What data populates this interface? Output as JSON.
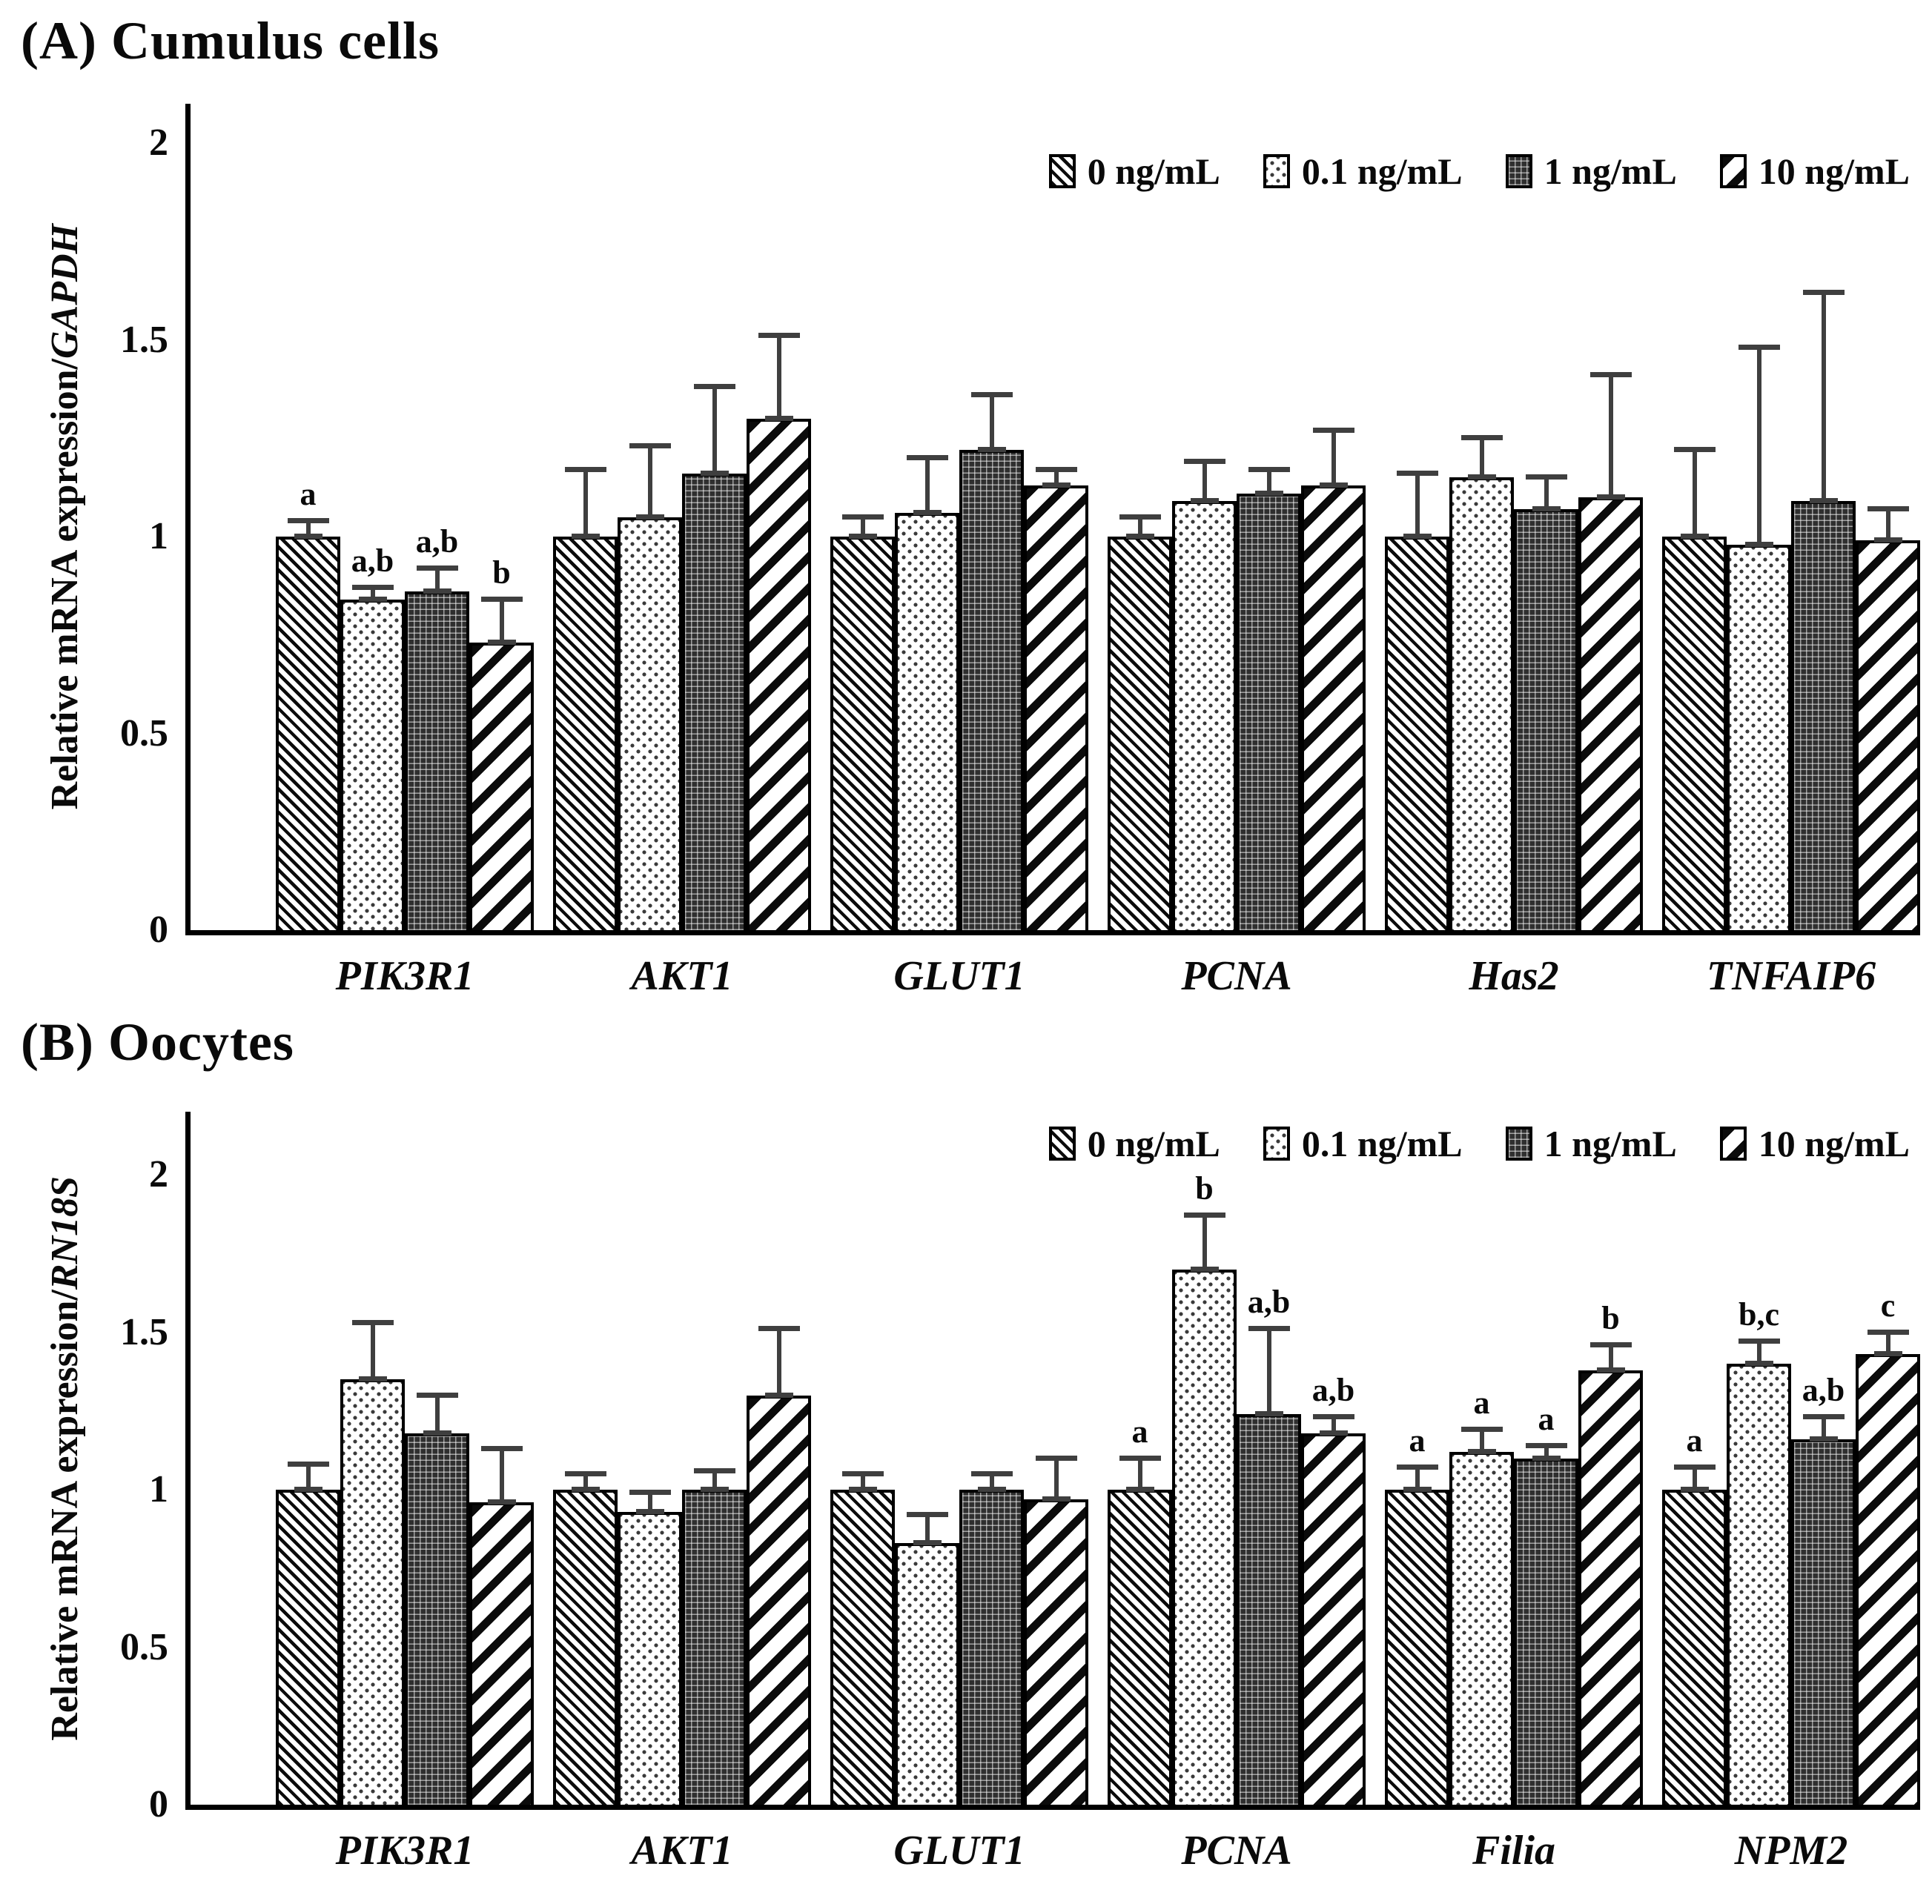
{
  "chart_data": [
    {
      "type": "bar",
      "panel": "A",
      "title": "(A) Cumulus cells",
      "ylabel_prefix": "Relative mRNA expression/",
      "ylabel_gene": "GAPDH",
      "ylim": [
        0,
        2.1
      ],
      "yticks": [
        "0",
        "0.5",
        "1",
        "1.5",
        "2"
      ],
      "ytick_values": [
        0,
        0.5,
        1,
        1.5,
        2
      ],
      "grid": false,
      "legend_position": "top-right",
      "categories": [
        "PIK3R1",
        "AKT1",
        "GLUT1",
        "PCNA",
        "Has2",
        "TNFAIP6"
      ],
      "series": [
        {
          "name": "0 ng/mL",
          "hatch": "thin-backslash",
          "values": [
            1.0,
            1.0,
            1.0,
            1.0,
            1.0,
            1.0
          ],
          "errors": [
            0.04,
            0.17,
            0.05,
            0.05,
            0.16,
            0.22
          ],
          "sig": [
            "a",
            "",
            "",
            "",
            "",
            ""
          ]
        },
        {
          "name": "0.1 ng/mL",
          "hatch": "dots",
          "values": [
            0.84,
            1.05,
            1.06,
            1.09,
            1.15,
            0.98
          ],
          "errors": [
            0.03,
            0.18,
            0.14,
            0.1,
            0.1,
            0.5
          ],
          "sig": [
            "a,b",
            "",
            "",
            "",
            "",
            ""
          ]
        },
        {
          "name": "1 ng/mL",
          "hatch": "dark-grid",
          "values": [
            0.86,
            1.16,
            1.22,
            1.11,
            1.07,
            1.09
          ],
          "errors": [
            0.06,
            0.22,
            0.14,
            0.06,
            0.08,
            0.53
          ],
          "sig": [
            "a,b",
            "",
            "",
            "",
            "",
            ""
          ]
        },
        {
          "name": "10 ng/mL",
          "hatch": "wide-slash",
          "values": [
            0.73,
            1.3,
            1.13,
            1.13,
            1.1,
            0.99
          ],
          "errors": [
            0.11,
            0.21,
            0.04,
            0.14,
            0.31,
            0.08
          ],
          "sig": [
            "b",
            "",
            "",
            "",
            "",
            ""
          ]
        }
      ]
    },
    {
      "type": "bar",
      "panel": "B",
      "title": "(B) Oocytes",
      "ylabel_prefix": "Relative mRNA expression/",
      "ylabel_gene": "RN18S",
      "ylim": [
        0,
        2.2
      ],
      "yticks": [
        "0",
        "0.5",
        "1",
        "1.5",
        "2"
      ],
      "ytick_values": [
        0,
        0.5,
        1,
        1.5,
        2
      ],
      "grid": false,
      "legend_position": "top-right",
      "categories": [
        "PIK3R1",
        "AKT1",
        "GLUT1",
        "PCNA",
        "Filia",
        "NPM2"
      ],
      "series": [
        {
          "name": "0 ng/mL",
          "hatch": "thin-backslash",
          "values": [
            1.0,
            1.0,
            1.0,
            1.0,
            1.0,
            1.0
          ],
          "errors": [
            0.08,
            0.05,
            0.05,
            0.1,
            0.07,
            0.07
          ],
          "sig": [
            "",
            "",
            "",
            "a",
            "a",
            "a"
          ]
        },
        {
          "name": "0.1 ng/mL",
          "hatch": "dots",
          "values": [
            1.35,
            0.93,
            0.83,
            1.7,
            1.12,
            1.4
          ],
          "errors": [
            0.18,
            0.06,
            0.09,
            0.17,
            0.07,
            0.07
          ],
          "sig": [
            "",
            "",
            "",
            "b",
            "a",
            "b,c"
          ]
        },
        {
          "name": "1 ng/mL",
          "hatch": "dark-grid",
          "values": [
            1.18,
            1.0,
            1.0,
            1.24,
            1.1,
            1.16
          ],
          "errors": [
            0.12,
            0.06,
            0.05,
            0.27,
            0.04,
            0.07
          ],
          "sig": [
            "",
            "",
            "",
            "a,b",
            "a",
            "a,b"
          ]
        },
        {
          "name": "10 ng/mL",
          "hatch": "wide-slash",
          "values": [
            0.96,
            1.3,
            0.97,
            1.18,
            1.38,
            1.43
          ],
          "errors": [
            0.17,
            0.21,
            0.13,
            0.05,
            0.08,
            0.07
          ],
          "sig": [
            "",
            "",
            "",
            "a,b",
            "b",
            "c"
          ]
        }
      ]
    }
  ]
}
